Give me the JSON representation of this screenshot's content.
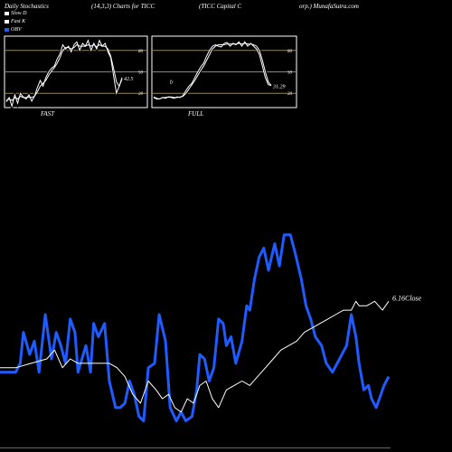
{
  "header": {
    "left": "Daily Stochastics",
    "mid": "(14,3,3) Charts for TICC",
    "right": "(TICC Capital C",
    "far_right": "orp.) MunafaSutra.com"
  },
  "legend": [
    {
      "label": "Slow  D",
      "color": "#ffffff"
    },
    {
      "label": "Fast K",
      "color": "#ffffff"
    },
    {
      "label": "OBV",
      "color": "#1f5bff"
    }
  ],
  "chart_data": [
    {
      "type": "line",
      "title": "FAST",
      "ylim": [
        0,
        100
      ],
      "levels": [
        80,
        50,
        20
      ],
      "level_color": "#b8860b",
      "last_value_label": "42.5",
      "series": [
        {
          "name": "Fast K",
          "color": "#ffffff",
          "values": [
            8,
            14,
            2,
            18,
            6,
            20,
            15,
            12,
            18,
            9,
            16,
            28,
            38,
            30,
            42,
            50,
            55,
            58,
            68,
            75,
            88,
            82,
            86,
            78,
            88,
            92,
            80,
            90,
            86,
            94,
            80,
            90,
            82,
            94,
            86,
            90,
            78,
            70,
            45,
            20,
            30,
            42
          ]
        },
        {
          "name": "Slow D",
          "color": "#ffffff",
          "values": [
            10,
            12,
            10,
            14,
            12,
            16,
            14,
            14,
            15,
            14,
            16,
            22,
            30,
            34,
            38,
            45,
            51,
            56,
            62,
            70,
            80,
            84,
            84,
            82,
            84,
            88,
            86,
            86,
            86,
            88,
            86,
            88,
            85,
            88,
            86,
            86,
            82,
            72,
            55,
            36,
            30,
            40
          ]
        }
      ]
    },
    {
      "type": "line",
      "title": "FULL",
      "ylim": [
        0,
        100
      ],
      "levels": [
        80,
        50,
        20
      ],
      "level_color": "#b8860b",
      "last_value_label": "31.29",
      "axis_mark": "fy",
      "series": [
        {
          "name": "Slow D",
          "color": "#ffffff",
          "values": [
            15,
            13,
            12,
            14,
            14,
            15,
            15,
            14,
            14,
            15,
            16,
            20,
            26,
            32,
            38,
            45,
            52,
            58,
            66,
            74,
            82,
            86,
            88,
            88,
            88,
            89,
            89,
            89,
            89,
            90,
            89,
            90,
            89,
            89,
            88,
            86,
            80,
            66,
            50,
            36,
            31
          ]
        },
        {
          "name": "Fast K",
          "color": "#ffffff",
          "values": [
            14,
            12,
            12,
            14,
            13,
            15,
            14,
            13,
            15,
            14,
            17,
            24,
            30,
            34,
            42,
            50,
            57,
            62,
            72,
            80,
            86,
            88,
            86,
            85,
            90,
            91,
            86,
            90,
            88,
            92,
            86,
            92,
            86,
            90,
            86,
            82,
            74,
            58,
            42,
            32,
            31
          ]
        }
      ]
    },
    {
      "type": "line",
      "ylim": [
        0,
        100
      ],
      "last_value_label": "6.16Close",
      "series": [
        {
          "name": "OBV",
          "color": "#1f5bff",
          "x": [
            0,
            5,
            10,
            13,
            15,
            19,
            22,
            25,
            29,
            33,
            36,
            39,
            42,
            45,
            48,
            50,
            55,
            58,
            60,
            63,
            67,
            70,
            74,
            77,
            80,
            83,
            86,
            89,
            92,
            95,
            99,
            102,
            106,
            109,
            113,
            116,
            119,
            123,
            126,
            128,
            131,
            134,
            137,
            140,
            143,
            145,
            148,
            151,
            155,
            158,
            160,
            163,
            166,
            169,
            172,
            176,
            179,
            182,
            186,
            189,
            193,
            196,
            199,
            202,
            206,
            209,
            213,
            216,
            219,
            222,
            225,
            228,
            230,
            233,
            236,
            238,
            241,
            244,
            246,
            249
          ],
          "y": [
            34,
            34,
            34,
            38,
            52,
            42,
            48,
            34,
            60,
            40,
            52,
            46,
            38,
            58,
            52,
            34,
            46,
            34,
            56,
            50,
            56,
            30,
            18,
            18,
            20,
            30,
            24,
            14,
            12,
            36,
            38,
            60,
            48,
            18,
            12,
            16,
            12,
            14,
            26,
            42,
            40,
            30,
            36,
            58,
            56,
            46,
            50,
            38,
            48,
            64,
            62,
            76,
            86,
            90,
            80,
            92,
            82,
            96,
            96,
            88,
            76,
            64,
            58,
            50,
            46,
            38,
            34,
            38,
            42,
            46,
            60,
            50,
            38,
            26,
            28,
            22,
            18,
            24,
            28,
            32
          ]
        },
        {
          "name": "Close",
          "color": "#ffffff",
          "x": [
            0,
            10,
            20,
            30,
            35,
            40,
            45,
            50,
            55,
            60,
            65,
            70,
            75,
            80,
            85,
            90,
            95,
            100,
            104,
            108,
            112,
            116,
            120,
            124,
            128,
            132,
            136,
            140,
            145,
            150,
            155,
            160,
            165,
            170,
            175,
            180,
            185,
            190,
            195,
            200,
            205,
            210,
            215,
            220,
            225,
            228,
            230,
            235,
            240,
            245,
            249
          ],
          "y": [
            36,
            36,
            38,
            40,
            44,
            36,
            40,
            38,
            38,
            38,
            38,
            38,
            36,
            32,
            24,
            20,
            30,
            26,
            22,
            24,
            18,
            16,
            22,
            20,
            28,
            30,
            22,
            18,
            26,
            28,
            30,
            28,
            32,
            36,
            40,
            44,
            46,
            48,
            52,
            54,
            56,
            58,
            60,
            62,
            62,
            66,
            64,
            64,
            66,
            62,
            66
          ]
        }
      ]
    }
  ]
}
